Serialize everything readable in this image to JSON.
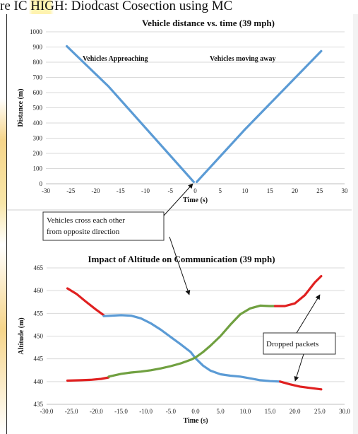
{
  "caption": "re IC HIGH: Diodcast Cosection using MC",
  "chart_data": [
    {
      "type": "line",
      "title": "Vehicle distance vs. time (39 mph)",
      "xlabel": "Time (s)",
      "ylabel": "Distance (m)",
      "xlim": [
        -30,
        30
      ],
      "ylim": [
        0,
        1000
      ],
      "xticks": [
        -30,
        -25,
        -20,
        -15,
        -10,
        -5,
        0,
        5,
        10,
        15,
        20,
        25,
        30
      ],
      "yticks": [
        0,
        100,
        200,
        300,
        400,
        500,
        600,
        700,
        800,
        900,
        1000
      ],
      "grid": "horizontal",
      "color": "#5b9bd5",
      "annotations": [
        "Vehicles Approaching",
        "Vehicles moving away"
      ],
      "series": [
        {
          "x": [
            -25.8,
            -17.4,
            -0.3
          ],
          "y": [
            905,
            640,
            12
          ]
        },
        {
          "x": [
            0.3,
            10.0,
            25.3
          ],
          "y": [
            12,
            358,
            873
          ]
        }
      ]
    },
    {
      "type": "line",
      "title": "Impact of Altitude on Communication  (39 mph)",
      "xlabel": "Time (s)",
      "ylabel": "Altitude (m)",
      "xlim": [
        -30,
        30
      ],
      "ylim": [
        435,
        465
      ],
      "xticks": [
        "-30.0",
        "-25.0",
        "-20.0",
        "-15.0",
        "-10.0",
        "-5.0",
        "0.0",
        "5.0",
        "10.0",
        "15.0",
        "20.0",
        "25.0",
        "30.0"
      ],
      "yticks": [
        435,
        440,
        445,
        450,
        455,
        460,
        465
      ],
      "grid": "horizontal",
      "series": [
        {
          "color": "#e02020",
          "x": [
            -25.8,
            -24,
            -22,
            -20,
            -18.5
          ],
          "y": [
            460.5,
            459.3,
            457.5,
            455.8,
            454.6
          ]
        },
        {
          "color": "#5b9bd5",
          "x": [
            -18.5,
            -17,
            -15,
            -13,
            -11,
            -9,
            -7,
            -5,
            -3,
            -1,
            0,
            1.5,
            3,
            5,
            7,
            9,
            11,
            13,
            15,
            17
          ],
          "y": [
            454.4,
            454.5,
            454.6,
            454.5,
            453.9,
            452.8,
            451.4,
            449.8,
            448.2,
            446.5,
            445.1,
            443.5,
            442.4,
            441.6,
            441.3,
            441.1,
            440.7,
            440.3,
            440.1,
            440.0
          ]
        },
        {
          "color": "#e02020",
          "x": [
            17,
            19,
            21,
            23,
            25.3
          ],
          "y": [
            440.0,
            439.4,
            438.9,
            438.6,
            438.3
          ]
        },
        {
          "color": "#e02020",
          "x": [
            -25.8,
            -23,
            -21,
            -19,
            -17.5
          ],
          "y": [
            440.2,
            440.3,
            440.4,
            440.6,
            440.9
          ]
        },
        {
          "color": "#70a040",
          "x": [
            -17.5,
            -15,
            -13,
            -11,
            -9,
            -7,
            -5,
            -3,
            -1,
            0,
            1.5,
            3,
            5,
            7,
            9,
            11,
            13,
            15,
            16
          ],
          "y": [
            441.1,
            441.7,
            442.0,
            442.2,
            442.5,
            442.9,
            443.4,
            444.0,
            444.8,
            445.3,
            446.5,
            447.9,
            450.0,
            452.5,
            454.8,
            456.1,
            456.7,
            456.6,
            456.6
          ]
        },
        {
          "color": "#e02020",
          "x": [
            16,
            18,
            20,
            22,
            24,
            25.3
          ],
          "y": [
            456.6,
            456.6,
            457.2,
            459.0,
            461.8,
            463.2
          ]
        }
      ]
    }
  ],
  "callout_cross": [
    "Vehicles cross each other",
    "from opposite direction"
  ],
  "callout_dropped": "Dropped packets"
}
